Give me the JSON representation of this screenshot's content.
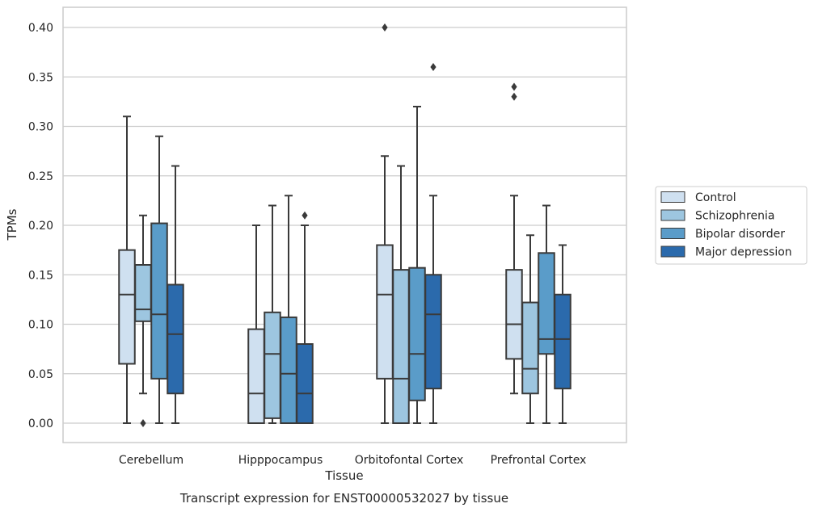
{
  "chart_data": {
    "type": "box",
    "caption": "Transcript expression for ENST00000532027 by tissue",
    "xlabel": "Tissue",
    "ylabel": "TPMs",
    "ylim": [
      -0.02,
      0.42
    ],
    "yticks": [
      "0.00",
      "0.05",
      "0.10",
      "0.15",
      "0.20",
      "0.25",
      "0.30",
      "0.35",
      "0.40"
    ],
    "grid": "horizontal",
    "legend_position": "outside-right",
    "categories": [
      "Cerebellum",
      "Hipppocampus",
      "Orbitofontal Cortex",
      "Prefrontal Cortex"
    ],
    "colors": {
      "Control": "#cfe0f0",
      "Schizophrenia": "#9dc6e0",
      "Bipolar disorder": "#5a9cc9",
      "Major depression": "#2b6aac",
      "line": "#3a3a3a",
      "grid": "#cccccc"
    },
    "series": [
      {
        "name": "Control",
        "boxes": [
          {
            "whislo": 0.0,
            "q1": 0.06,
            "med": 0.13,
            "q3": 0.175,
            "whishi": 0.31,
            "fliers": []
          },
          {
            "whislo": 0.0,
            "q1": 0.0,
            "med": 0.03,
            "q3": 0.095,
            "whishi": 0.2,
            "fliers": []
          },
          {
            "whislo": 0.0,
            "q1": 0.045,
            "med": 0.13,
            "q3": 0.18,
            "whishi": 0.27,
            "fliers": [
              0.4
            ]
          },
          {
            "whislo": 0.03,
            "q1": 0.065,
            "med": 0.1,
            "q3": 0.155,
            "whishi": 0.23,
            "fliers": [
              0.33,
              0.34
            ]
          }
        ]
      },
      {
        "name": "Schizophrenia",
        "boxes": [
          {
            "whislo": 0.03,
            "q1": 0.103,
            "med": 0.115,
            "q3": 0.16,
            "whishi": 0.21,
            "fliers": [
              0.0
            ]
          },
          {
            "whislo": 0.0,
            "q1": 0.005,
            "med": 0.07,
            "q3": 0.112,
            "whishi": 0.22,
            "fliers": []
          },
          {
            "whislo": 0.0,
            "q1": 0.0,
            "med": 0.045,
            "q3": 0.155,
            "whishi": 0.26,
            "fliers": []
          },
          {
            "whislo": 0.0,
            "q1": 0.03,
            "med": 0.055,
            "q3": 0.122,
            "whishi": 0.19,
            "fliers": []
          }
        ]
      },
      {
        "name": "Bipolar disorder",
        "boxes": [
          {
            "whislo": 0.0,
            "q1": 0.045,
            "med": 0.11,
            "q3": 0.202,
            "whishi": 0.29,
            "fliers": []
          },
          {
            "whislo": 0.0,
            "q1": 0.0,
            "med": 0.05,
            "q3": 0.107,
            "whishi": 0.23,
            "fliers": []
          },
          {
            "whislo": 0.0,
            "q1": 0.023,
            "med": 0.07,
            "q3": 0.157,
            "whishi": 0.32,
            "fliers": []
          },
          {
            "whislo": 0.0,
            "q1": 0.07,
            "med": 0.085,
            "q3": 0.172,
            "whishi": 0.22,
            "fliers": []
          }
        ]
      },
      {
        "name": "Major depression",
        "boxes": [
          {
            "whislo": 0.0,
            "q1": 0.03,
            "med": 0.09,
            "q3": 0.14,
            "whishi": 0.26,
            "fliers": []
          },
          {
            "whislo": 0.0,
            "q1": 0.0,
            "med": 0.03,
            "q3": 0.08,
            "whishi": 0.2,
            "fliers": [
              0.21
            ]
          },
          {
            "whislo": 0.0,
            "q1": 0.035,
            "med": 0.11,
            "q3": 0.15,
            "whishi": 0.23,
            "fliers": [
              0.36
            ]
          },
          {
            "whislo": 0.0,
            "q1": 0.035,
            "med": 0.085,
            "q3": 0.13,
            "whishi": 0.18,
            "fliers": []
          }
        ]
      }
    ]
  }
}
